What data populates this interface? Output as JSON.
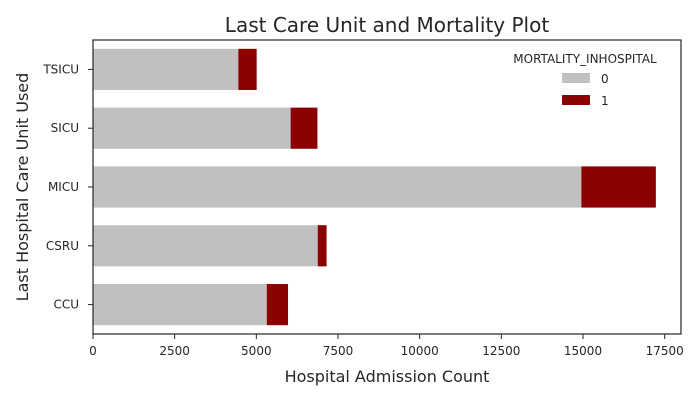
{
  "chart_data": {
    "type": "bar",
    "orientation": "horizontal",
    "stacked": true,
    "title": "Last Care Unit and Mortality Plot",
    "xlabel": "Hospital Admission Count",
    "ylabel": "Last Hospital Care Unit Used",
    "categories": [
      "CCU",
      "CSRU",
      "MICU",
      "SICU",
      "TSICU"
    ],
    "series": [
      {
        "name": "0",
        "color": "#c0c0c0",
        "values": [
          5320,
          6880,
          14950,
          6050,
          4450
        ]
      },
      {
        "name": "1",
        "color": "#8b0000",
        "values": [
          650,
          270,
          2280,
          820,
          560
        ]
      }
    ],
    "xlim": [
      0,
      18000
    ],
    "xticks": [
      0,
      2500,
      5000,
      7500,
      10000,
      12500,
      15000,
      17500
    ],
    "xtick_labels": [
      "0",
      "2500",
      "5000",
      "7500",
      "10000",
      "12500",
      "15000",
      "17500"
    ],
    "legend": {
      "title": "MORTALITY_INHOSPITAL",
      "placement": "top-right"
    },
    "grid": false
  }
}
